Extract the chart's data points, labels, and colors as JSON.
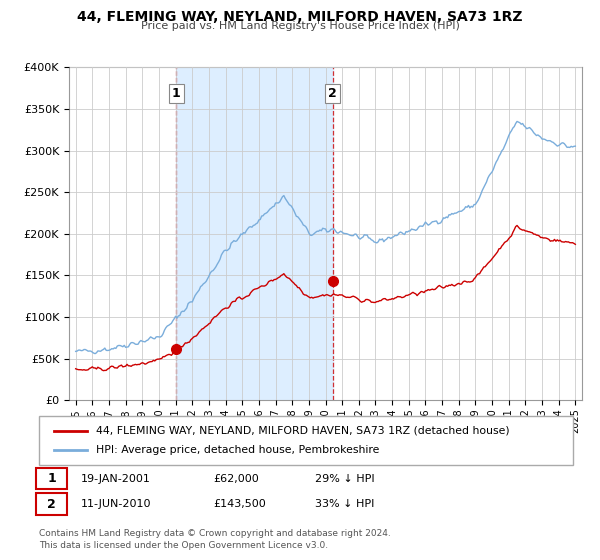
{
  "title": "44, FLEMING WAY, NEYLAND, MILFORD HAVEN, SA73 1RZ",
  "subtitle": "Price paid vs. HM Land Registry's House Price Index (HPI)",
  "legend_red": "44, FLEMING WAY, NEYLAND, MILFORD HAVEN, SA73 1RZ (detached house)",
  "legend_blue": "HPI: Average price, detached house, Pembrokeshire",
  "transaction1_label": "1",
  "transaction1_date": "19-JAN-2001",
  "transaction1_price": "£62,000",
  "transaction1_hpi": "29% ↓ HPI",
  "transaction1_year": 2001.05,
  "transaction1_value": 62000,
  "transaction2_label": "2",
  "transaction2_date": "11-JUN-2010",
  "transaction2_price": "£143,500",
  "transaction2_hpi": "33% ↓ HPI",
  "transaction2_year": 2010.44,
  "transaction2_value": 143500,
  "footer": "Contains HM Land Registry data © Crown copyright and database right 2024.\nThis data is licensed under the Open Government Licence v3.0.",
  "red_color": "#cc0000",
  "blue_color": "#7aaddb",
  "shade_color": "#ddeeff",
  "ylim_min": 0,
  "ylim_max": 400000,
  "xlabel_start": 1995,
  "xlabel_end": 2025
}
